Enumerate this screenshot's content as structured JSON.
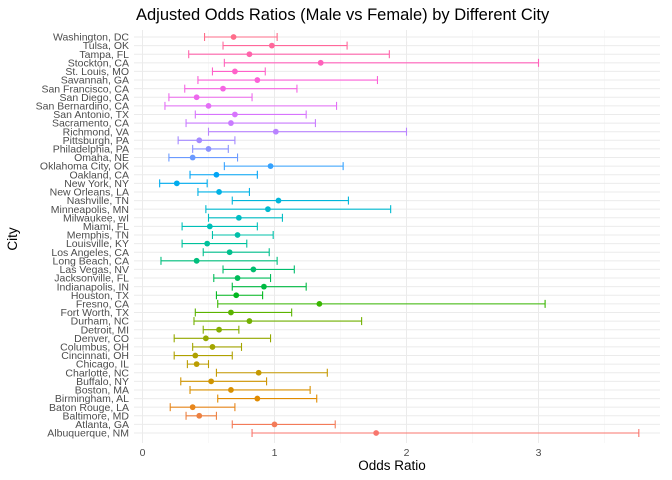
{
  "chart_data": {
    "type": "scatter",
    "subtype": "point-range / forest plot",
    "title": "Adjusted Odds Ratios (Male vs Female) by Different City",
    "xlabel": "Odds Ratio",
    "ylabel": "City",
    "xlim": [
      0,
      3.77
    ],
    "x_ticks": [
      "0",
      "1",
      "2",
      "3"
    ],
    "grid": true,
    "legend": "none",
    "cities": [
      {
        "name": "Albuquerque, NM",
        "or": 1.77,
        "lo": 0.83,
        "hi": 3.76,
        "color": "#F8766D"
      },
      {
        "name": "Atlanta, GA",
        "or": 1.0,
        "lo": 0.68,
        "hi": 1.46,
        "color": "#F37B59"
      },
      {
        "name": "Baltimore, MD",
        "or": 0.43,
        "lo": 0.33,
        "hi": 0.56,
        "color": "#ED8141"
      },
      {
        "name": "Baton Rouge, LA",
        "or": 0.38,
        "lo": 0.21,
        "hi": 0.7,
        "color": "#E7861B"
      },
      {
        "name": "Birmingham, AL",
        "or": 0.87,
        "lo": 0.57,
        "hi": 1.32,
        "color": "#E08B00"
      },
      {
        "name": "Boston, MA",
        "or": 0.67,
        "lo": 0.36,
        "hi": 1.27,
        "color": "#D89000"
      },
      {
        "name": "Buffalo, NY",
        "or": 0.52,
        "lo": 0.29,
        "hi": 0.94,
        "color": "#CF9400"
      },
      {
        "name": "Charlotte, NC",
        "or": 0.88,
        "lo": 0.56,
        "hi": 1.4,
        "color": "#C59900"
      },
      {
        "name": "Chicago, IL",
        "or": 0.41,
        "lo": 0.34,
        "hi": 0.5,
        "color": "#BB9D00"
      },
      {
        "name": "Cincinnati, OH",
        "or": 0.4,
        "lo": 0.24,
        "hi": 0.68,
        "color": "#AFA100"
      },
      {
        "name": "Columbus, OH",
        "or": 0.53,
        "lo": 0.38,
        "hi": 0.75,
        "color": "#A3A500"
      },
      {
        "name": "Denver, CO",
        "or": 0.48,
        "lo": 0.24,
        "hi": 0.97,
        "color": "#95A900"
      },
      {
        "name": "Detroit, MI",
        "or": 0.58,
        "lo": 0.46,
        "hi": 0.73,
        "color": "#85AD00"
      },
      {
        "name": "Durham, NC",
        "or": 0.81,
        "lo": 0.39,
        "hi": 1.66,
        "color": "#72B000"
      },
      {
        "name": "Fort Worth, TX",
        "or": 0.67,
        "lo": 0.4,
        "hi": 1.13,
        "color": "#5BB300"
      },
      {
        "name": "Fresno, CA",
        "or": 1.34,
        "lo": 0.57,
        "hi": 3.05,
        "color": "#39B600"
      },
      {
        "name": "Houston, TX",
        "or": 0.71,
        "lo": 0.56,
        "hi": 0.91,
        "color": "#00B81F"
      },
      {
        "name": "Indianapolis, IN",
        "or": 0.92,
        "lo": 0.68,
        "hi": 1.24,
        "color": "#00BA42"
      },
      {
        "name": "Jacksonville, FL",
        "or": 0.72,
        "lo": 0.54,
        "hi": 0.97,
        "color": "#00BC59"
      },
      {
        "name": "Las Vegas, NV",
        "or": 0.84,
        "lo": 0.61,
        "hi": 1.15,
        "color": "#00BD6D"
      },
      {
        "name": "Long Beach, CA",
        "or": 0.41,
        "lo": 0.14,
        "hi": 1.02,
        "color": "#00BF7D"
      },
      {
        "name": "Los Angeles, CA",
        "or": 0.66,
        "lo": 0.46,
        "hi": 0.96,
        "color": "#00C08D"
      },
      {
        "name": "Louisville, KY",
        "or": 0.49,
        "lo": 0.3,
        "hi": 0.79,
        "color": "#00C19C"
      },
      {
        "name": "Memphis, TN",
        "or": 0.72,
        "lo": 0.53,
        "hi": 0.99,
        "color": "#00C0AA"
      },
      {
        "name": "Miami, FL",
        "or": 0.51,
        "lo": 0.3,
        "hi": 0.87,
        "color": "#00BFB8"
      },
      {
        "name": "Milwaukee, wI",
        "or": 0.73,
        "lo": 0.5,
        "hi": 1.06,
        "color": "#00BDC4"
      },
      {
        "name": "Minneapolis, MN",
        "or": 0.95,
        "lo": 0.48,
        "hi": 1.88,
        "color": "#00BAD0"
      },
      {
        "name": "Nashville, TN",
        "or": 1.03,
        "lo": 0.68,
        "hi": 1.56,
        "color": "#00B6DB"
      },
      {
        "name": "New Orleans, LA",
        "or": 0.58,
        "lo": 0.42,
        "hi": 0.81,
        "color": "#00B2E5"
      },
      {
        "name": "New York, NY",
        "or": 0.26,
        "lo": 0.13,
        "hi": 0.49,
        "color": "#00ACEE"
      },
      {
        "name": "Oakland, CA",
        "or": 0.56,
        "lo": 0.36,
        "hi": 0.87,
        "color": "#00A5F6"
      },
      {
        "name": "Oklahoma City, OK",
        "or": 0.97,
        "lo": 0.62,
        "hi": 1.52,
        "color": "#35A2FF"
      },
      {
        "name": "Omaha, NE",
        "or": 0.38,
        "lo": 0.2,
        "hi": 0.72,
        "color": "#6B9AFF"
      },
      {
        "name": "Philadelphia, PA",
        "or": 0.5,
        "lo": 0.38,
        "hi": 0.65,
        "color": "#8B93FF"
      },
      {
        "name": "Pittsburgh, PA",
        "or": 0.43,
        "lo": 0.27,
        "hi": 0.7,
        "color": "#A58AFF"
      },
      {
        "name": "Richmond, VA",
        "or": 1.01,
        "lo": 0.5,
        "hi": 2.0,
        "color": "#B983FF"
      },
      {
        "name": "Sacramento, CA",
        "or": 0.67,
        "lo": 0.33,
        "hi": 1.31,
        "color": "#C97CFF"
      },
      {
        "name": "San Antonio, TX",
        "or": 0.7,
        "lo": 0.4,
        "hi": 1.24,
        "color": "#D774FD"
      },
      {
        "name": "San Bernardino, CA",
        "or": 0.5,
        "lo": 0.17,
        "hi": 1.47,
        "color": "#E36EF6"
      },
      {
        "name": "San Diego, CA",
        "or": 0.41,
        "lo": 0.2,
        "hi": 0.83,
        "color": "#ED68ED"
      },
      {
        "name": "San Francisco, CA",
        "or": 0.61,
        "lo": 0.32,
        "hi": 1.17,
        "color": "#F564E3"
      },
      {
        "name": "Savannah, GA",
        "or": 0.87,
        "lo": 0.42,
        "hi": 1.78,
        "color": "#FB61D7"
      },
      {
        "name": "St. Louis, MO",
        "or": 0.7,
        "lo": 0.53,
        "hi": 0.93,
        "color": "#FF61C9"
      },
      {
        "name": "Stockton, CA",
        "or": 1.35,
        "lo": 0.62,
        "hi": 3.0,
        "color": "#FF62BB"
      },
      {
        "name": "Tampa, FL",
        "or": 0.81,
        "lo": 0.35,
        "hi": 1.87,
        "color": "#FF64AB"
      },
      {
        "name": "Tulsa, OK",
        "or": 0.98,
        "lo": 0.61,
        "hi": 1.55,
        "color": "#FF689B"
      },
      {
        "name": "Washington, DC",
        "or": 0.69,
        "lo": 0.47,
        "hi": 1.02,
        "color": "#FE6D8A"
      }
    ]
  }
}
